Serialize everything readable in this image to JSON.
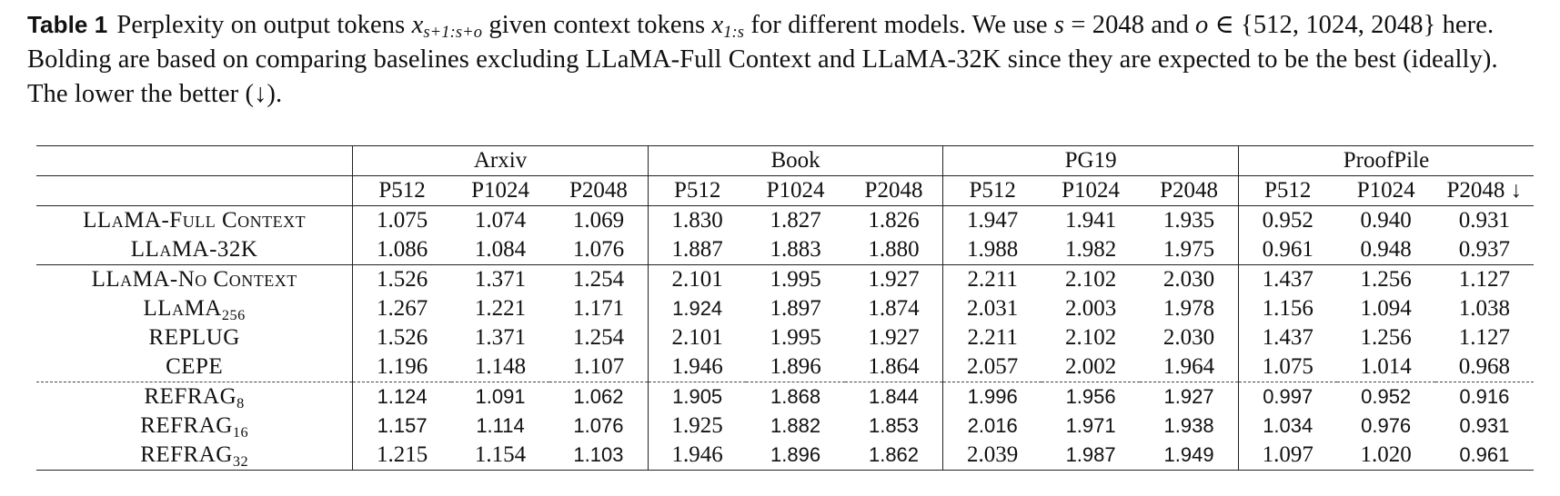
{
  "caption": {
    "label": "Table 1",
    "part1": "Perplexity on output tokens ",
    "math1": "x",
    "math1_sub": "s+1:s+o",
    "part2": " given context tokens ",
    "math2": "x",
    "math2_sub": "1:s",
    "part3": " for different models. We use ",
    "math3": "s",
    "part4": " = 2048 and ",
    "math4": "o",
    "part5": " ∈ {512, 1024, 2048} here. Bolding are based on comparing baselines excluding LLaMA-Full Context and LLaMA-32K since they are expected to be the best (ideally). The lower the better (↓)."
  },
  "table": {
    "groups": [
      "Arxiv",
      "Book",
      "PG19",
      "ProofPile"
    ],
    "subheaders": [
      "P512",
      "P1024",
      "P2048",
      "P512",
      "P1024",
      "P2048",
      "P512",
      "P1024",
      "P2048",
      "P512",
      "P1024",
      "P2048 ↓"
    ],
    "rows": [
      {
        "name": "LLaMA-Full Context",
        "values": [
          "1.075",
          "1.074",
          "1.069",
          "1.830",
          "1.827",
          "1.826",
          "1.947",
          "1.941",
          "1.935",
          "0.952",
          "0.940",
          "0.931"
        ],
        "bold": []
      },
      {
        "name": "LLaMA-32K",
        "values": [
          "1.086",
          "1.084",
          "1.076",
          "1.887",
          "1.883",
          "1.880",
          "1.988",
          "1.982",
          "1.975",
          "0.961",
          "0.948",
          "0.937"
        ],
        "bold": []
      },
      {
        "name": "LLaMA-No Context",
        "values": [
          "1.526",
          "1.371",
          "1.254",
          "2.101",
          "1.995",
          "1.927",
          "2.211",
          "2.102",
          "2.030",
          "1.437",
          "1.256",
          "1.127"
        ],
        "bold": []
      },
      {
        "name": "LLaMA",
        "sub": "256",
        "values": [
          "1.267",
          "1.221",
          "1.171",
          "1.924",
          "1.897",
          "1.874",
          "2.031",
          "2.003",
          "1.978",
          "1.156",
          "1.094",
          "1.038"
        ],
        "bold": [
          3
        ]
      },
      {
        "name": "REPLUG",
        "values": [
          "1.526",
          "1.371",
          "1.254",
          "2.101",
          "1.995",
          "1.927",
          "2.211",
          "2.102",
          "2.030",
          "1.437",
          "1.256",
          "1.127"
        ],
        "bold": []
      },
      {
        "name": "CEPE",
        "values": [
          "1.196",
          "1.148",
          "1.107",
          "1.946",
          "1.896",
          "1.864",
          "2.057",
          "2.002",
          "1.964",
          "1.075",
          "1.014",
          "0.968"
        ],
        "bold": []
      },
      {
        "name": "REFRAG",
        "sub": "8",
        "values": [
          "1.124",
          "1.091",
          "1.062",
          "1.905",
          "1.868",
          "1.844",
          "1.996",
          "1.956",
          "1.927",
          "0.997",
          "0.952",
          "0.916"
        ],
        "bold": [
          0,
          1,
          2,
          3,
          4,
          5,
          6,
          7,
          8,
          9,
          10,
          11
        ]
      },
      {
        "name": "REFRAG",
        "sub": "16",
        "values": [
          "1.157",
          "1.114",
          "1.076",
          "1.925",
          "1.882",
          "1.853",
          "2.016",
          "1.971",
          "1.938",
          "1.034",
          "0.976",
          "0.931"
        ],
        "bold": [
          0,
          1,
          2,
          4,
          5,
          6,
          7,
          8,
          9,
          10,
          11
        ]
      },
      {
        "name": "REFRAG",
        "sub": "32",
        "values": [
          "1.215",
          "1.154",
          "1.103",
          "1.946",
          "1.896",
          "1.862",
          "2.039",
          "1.987",
          "1.949",
          "1.097",
          "1.020",
          "0.961"
        ],
        "bold": [
          2,
          4,
          5,
          7,
          8,
          11
        ]
      }
    ]
  }
}
